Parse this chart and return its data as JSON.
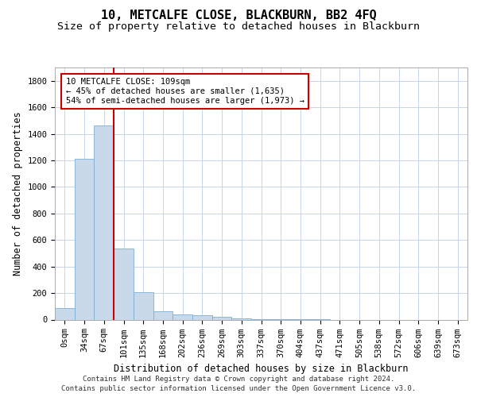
{
  "title": "10, METCALFE CLOSE, BLACKBURN, BB2 4FQ",
  "subtitle": "Size of property relative to detached houses in Blackburn",
  "xlabel": "Distribution of detached houses by size in Blackburn",
  "ylabel": "Number of detached properties",
  "bar_labels": [
    "0sqm",
    "34sqm",
    "67sqm",
    "101sqm",
    "135sqm",
    "168sqm",
    "202sqm",
    "236sqm",
    "269sqm",
    "303sqm",
    "337sqm",
    "370sqm",
    "404sqm",
    "437sqm",
    "471sqm",
    "505sqm",
    "538sqm",
    "572sqm",
    "606sqm",
    "639sqm",
    "673sqm"
  ],
  "bar_values": [
    85,
    1210,
    1465,
    535,
    205,
    65,
    40,
    30,
    20,
    10,
    5,
    5,
    5,
    5,
    0,
    0,
    0,
    0,
    0,
    0,
    0
  ],
  "bar_color": "#c9d9ea",
  "bar_edge_color": "#7bafd4",
  "ylim": [
    0,
    1900
  ],
  "yticks": [
    0,
    200,
    400,
    600,
    800,
    1000,
    1200,
    1400,
    1600,
    1800
  ],
  "property_line_x": 2.5,
  "property_line_color": "#cc0000",
  "annotation_text": "10 METCALFE CLOSE: 109sqm\n← 45% of detached houses are smaller (1,635)\n54% of semi-detached houses are larger (1,973) →",
  "footer_line1": "Contains HM Land Registry data © Crown copyright and database right 2024.",
  "footer_line2": "Contains public sector information licensed under the Open Government Licence v3.0.",
  "bg_color": "#ffffff",
  "grid_color": "#c8d4e8",
  "title_fontsize": 11,
  "subtitle_fontsize": 9.5,
  "axis_label_fontsize": 8.5,
  "tick_fontsize": 7.5,
  "footer_fontsize": 6.5,
  "annotation_fontsize": 7.5
}
